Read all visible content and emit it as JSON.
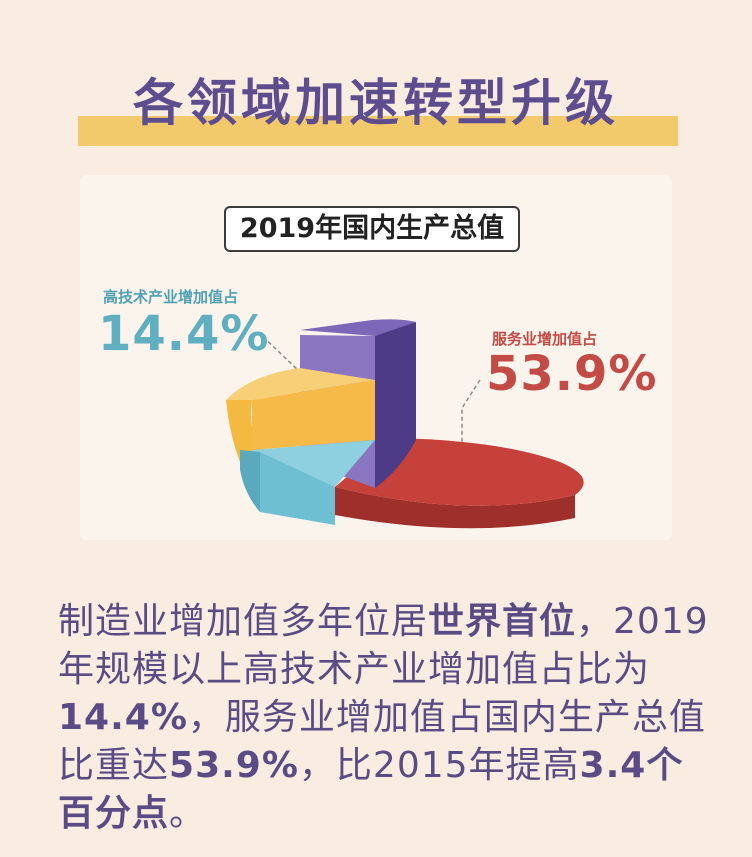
{
  "heading": {
    "title": "各领域加速转型升级"
  },
  "chart_data": {
    "type": "pie",
    "title": "2019年国内生产总值",
    "slices": [
      {
        "label": "高技术产业增加值占",
        "value": 14.4,
        "value_label": "14.4%",
        "color": "#6fbfd3"
      },
      {
        "label": "服务业增加值占",
        "value": 53.9,
        "value_label": "53.9%",
        "color": "#c7413b"
      },
      {
        "label": "",
        "value": null,
        "color": "#6f56a7"
      },
      {
        "label": "",
        "value": null,
        "color": "#f3ba3f"
      }
    ]
  },
  "paragraph": {
    "p1": "制造业增加值多年位居",
    "b1": "世界首位",
    "p2": "，2019年规模以上高技术产业增加值占比为",
    "b2": "14.4%",
    "p3": "，服务业增加值占国内生产总值比重达",
    "b3": "53.9%",
    "p4": "，比2015年提高",
    "b4": "3.4个百分点",
    "p5": "。"
  }
}
